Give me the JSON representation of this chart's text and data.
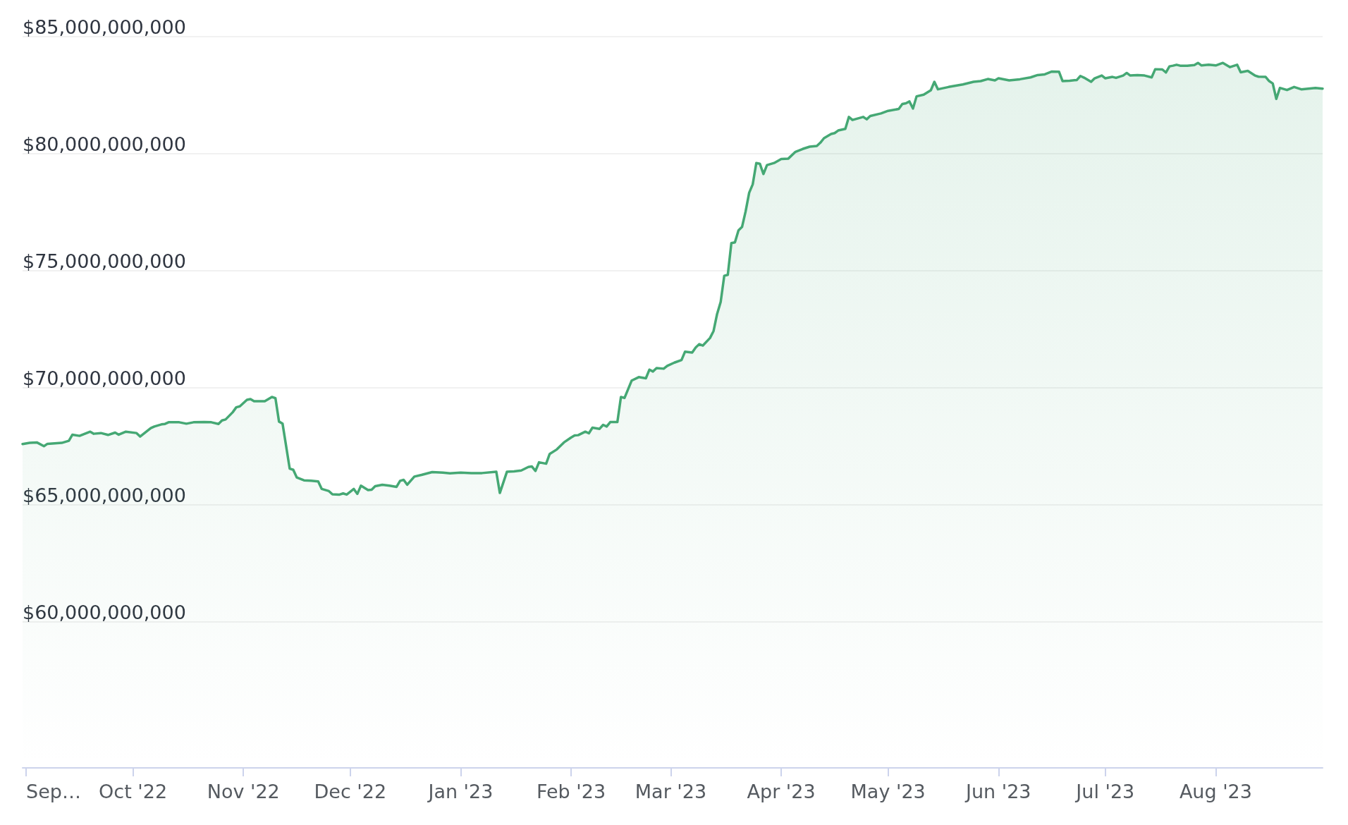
{
  "chart_data": {
    "type": "area",
    "color": "#45a874",
    "marker": "none",
    "line_style": "solid",
    "grid": "y",
    "xlim": [
      "2022-08-31",
      "2023-08-31"
    ],
    "xticks": [
      {
        "value": "2022-09-01",
        "label": "Sep…"
      },
      {
        "value": "2022-10-01",
        "label": "Oct '22"
      },
      {
        "value": "2022-11-01",
        "label": "Nov '22"
      },
      {
        "value": "2022-12-01",
        "label": "Dec '22"
      },
      {
        "value": "2023-01-01",
        "label": "Jan '23"
      },
      {
        "value": "2023-02-01",
        "label": "Feb '23"
      },
      {
        "value": "2023-03-01",
        "label": "Mar '23"
      },
      {
        "value": "2023-04-01",
        "label": "Apr '23"
      },
      {
        "value": "2023-05-01",
        "label": "May '23"
      },
      {
        "value": "2023-06-01",
        "label": "Jun '23"
      },
      {
        "value": "2023-07-01",
        "label": "Jul '23"
      },
      {
        "value": "2023-08-01",
        "label": "Aug '23"
      }
    ],
    "ylim": [
      53750000000,
      85000000000
    ],
    "yticks": [
      {
        "value": 60000000000,
        "label": "$60,000,000,000"
      },
      {
        "value": 65000000000,
        "label": "$65,000,000,000"
      },
      {
        "value": 70000000000,
        "label": "$70,000,000,000"
      },
      {
        "value": 75000000000,
        "label": "$75,000,000,000"
      },
      {
        "value": 80000000000,
        "label": "$80,000,000,000"
      },
      {
        "value": 85000000000,
        "label": "$85,000,000,000"
      }
    ],
    "x": [
      "2022-08-31",
      "2022-09-02",
      "2022-09-04",
      "2022-09-06",
      "2022-09-07",
      "2022-09-11",
      "2022-09-13",
      "2022-09-14",
      "2022-09-16",
      "2022-09-18",
      "2022-09-19",
      "2022-09-20",
      "2022-09-22",
      "2022-09-24",
      "2022-09-26",
      "2022-09-27",
      "2022-09-29",
      "2022-10-02",
      "2022-10-03",
      "2022-10-06",
      "2022-10-07",
      "2022-10-09",
      "2022-10-10",
      "2022-10-11",
      "2022-10-14",
      "2022-10-16",
      "2022-10-18",
      "2022-10-21",
      "2022-10-23",
      "2022-10-25",
      "2022-10-26",
      "2022-10-27",
      "2022-10-29",
      "2022-10-30",
      "2022-10-31",
      "2022-11-02",
      "2022-11-03",
      "2022-11-04",
      "2022-11-07",
      "2022-11-09",
      "2022-11-10",
      "2022-11-11",
      "2022-11-12",
      "2022-11-14",
      "2022-11-15",
      "2022-11-16",
      "2022-11-18",
      "2022-11-20",
      "2022-11-22",
      "2022-11-23",
      "2022-11-25",
      "2022-11-26",
      "2022-11-28",
      "2022-11-29",
      "2022-11-30",
      "2022-12-02",
      "2022-12-03",
      "2022-12-04",
      "2022-12-06",
      "2022-12-07",
      "2022-12-08",
      "2022-12-10",
      "2022-12-12",
      "2022-12-14",
      "2022-12-15",
      "2022-12-16",
      "2022-12-17",
      "2022-12-19",
      "2022-12-21",
      "2022-12-24",
      "2022-12-27",
      "2022-12-29",
      "2023-01-01",
      "2023-01-04",
      "2023-01-07",
      "2023-01-11",
      "2023-01-12",
      "2023-01-14",
      "2023-01-16",
      "2023-01-18",
      "2023-01-20",
      "2023-01-21",
      "2023-01-22",
      "2023-01-23",
      "2023-01-25",
      "2023-01-26",
      "2023-01-28",
      "2023-01-30",
      "2023-02-01",
      "2023-02-02",
      "2023-02-03",
      "2023-02-05",
      "2023-02-06",
      "2023-02-07",
      "2023-02-09",
      "2023-02-10",
      "2023-02-11",
      "2023-02-12",
      "2023-02-14",
      "2023-02-15",
      "2023-02-16",
      "2023-02-18",
      "2023-02-20",
      "2023-02-22",
      "2023-02-23",
      "2023-02-24",
      "2023-02-25",
      "2023-02-27",
      "2023-02-28",
      "2023-03-02",
      "2023-03-04",
      "2023-03-05",
      "2023-03-07",
      "2023-03-08",
      "2023-03-09",
      "2023-03-10",
      "2023-03-12",
      "2023-03-13",
      "2023-03-14",
      "2023-03-15",
      "2023-03-16",
      "2023-03-17",
      "2023-03-18",
      "2023-03-19",
      "2023-03-20",
      "2023-03-21",
      "2023-03-22",
      "2023-03-23",
      "2023-03-24",
      "2023-03-25",
      "2023-03-26",
      "2023-03-27",
      "2023-03-28",
      "2023-03-30",
      "2023-04-01",
      "2023-04-03",
      "2023-04-05",
      "2023-04-07",
      "2023-04-09",
      "2023-04-11",
      "2023-04-12",
      "2023-04-13",
      "2023-04-15",
      "2023-04-16",
      "2023-04-17",
      "2023-04-19",
      "2023-04-20",
      "2023-04-21",
      "2023-04-24",
      "2023-04-25",
      "2023-04-26",
      "2023-04-29",
      "2023-05-01",
      "2023-05-04",
      "2023-05-05",
      "2023-05-06",
      "2023-05-07",
      "2023-05-08",
      "2023-05-09",
      "2023-05-11",
      "2023-05-13",
      "2023-05-14",
      "2023-05-15",
      "2023-05-18",
      "2023-05-22",
      "2023-05-25",
      "2023-05-27",
      "2023-05-29",
      "2023-05-31",
      "2023-06-01",
      "2023-06-04",
      "2023-06-07",
      "2023-06-10",
      "2023-06-12",
      "2023-06-14",
      "2023-06-16",
      "2023-06-18",
      "2023-06-19",
      "2023-06-21",
      "2023-06-23",
      "2023-06-24",
      "2023-06-25",
      "2023-06-27",
      "2023-06-28",
      "2023-06-30",
      "2023-07-01",
      "2023-07-03",
      "2023-07-04",
      "2023-07-06",
      "2023-07-07",
      "2023-07-08",
      "2023-07-10",
      "2023-07-12",
      "2023-07-14",
      "2023-07-15",
      "2023-07-17",
      "2023-07-18",
      "2023-07-19",
      "2023-07-20",
      "2023-07-21",
      "2023-07-22",
      "2023-07-24",
      "2023-07-26",
      "2023-07-27",
      "2023-07-28",
      "2023-07-30",
      "2023-08-01",
      "2023-08-03",
      "2023-08-05",
      "2023-08-07",
      "2023-08-08",
      "2023-08-10",
      "2023-08-12",
      "2023-08-13",
      "2023-08-15",
      "2023-08-16",
      "2023-08-17",
      "2023-08-18",
      "2023-08-19",
      "2023-08-21",
      "2023-08-23",
      "2023-08-25",
      "2023-08-27",
      "2023-08-29",
      "2023-08-31"
    ],
    "values": [
      67590000000,
      67640000000,
      67660000000,
      67500000000,
      67600000000,
      67640000000,
      67730000000,
      67990000000,
      67940000000,
      68060000000,
      68120000000,
      68030000000,
      68060000000,
      67980000000,
      68080000000,
      67990000000,
      68120000000,
      68060000000,
      67910000000,
      68270000000,
      68340000000,
      68430000000,
      68450000000,
      68520000000,
      68520000000,
      68460000000,
      68520000000,
      68530000000,
      68520000000,
      68450000000,
      68600000000,
      68640000000,
      68950000000,
      69160000000,
      69200000000,
      69480000000,
      69510000000,
      69420000000,
      69420000000,
      69600000000,
      69550000000,
      68550000000,
      68460000000,
      66540000000,
      66490000000,
      66160000000,
      66040000000,
      66020000000,
      65990000000,
      65670000000,
      65580000000,
      65440000000,
      65430000000,
      65480000000,
      65430000000,
      65670000000,
      65460000000,
      65810000000,
      65620000000,
      65640000000,
      65790000000,
      65850000000,
      65810000000,
      65760000000,
      66020000000,
      66060000000,
      65850000000,
      66200000000,
      66270000000,
      66390000000,
      66370000000,
      66340000000,
      66370000000,
      66350000000,
      66350000000,
      66410000000,
      65500000000,
      66410000000,
      66420000000,
      66460000000,
      66610000000,
      66630000000,
      66440000000,
      66810000000,
      66750000000,
      67170000000,
      67360000000,
      67660000000,
      67870000000,
      67960000000,
      67970000000,
      68120000000,
      68050000000,
      68290000000,
      68240000000,
      68410000000,
      68340000000,
      68530000000,
      68530000000,
      69600000000,
      69560000000,
      70300000000,
      70450000000,
      70400000000,
      70770000000,
      70690000000,
      70840000000,
      70810000000,
      70930000000,
      71070000000,
      71180000000,
      71540000000,
      71500000000,
      71720000000,
      71860000000,
      71800000000,
      72120000000,
      72420000000,
      73150000000,
      73660000000,
      74780000000,
      74820000000,
      76180000000,
      76210000000,
      76720000000,
      76870000000,
      77530000000,
      78330000000,
      78690000000,
      79600000000,
      79570000000,
      79130000000,
      79510000000,
      79600000000,
      79770000000,
      79790000000,
      80080000000,
      80200000000,
      80300000000,
      80330000000,
      80470000000,
      80660000000,
      80840000000,
      80880000000,
      80990000000,
      81060000000,
      81570000000,
      81440000000,
      81570000000,
      81470000000,
      81610000000,
      81720000000,
      81830000000,
      81910000000,
      82120000000,
      82150000000,
      82230000000,
      81930000000,
      82450000000,
      82520000000,
      82710000000,
      83070000000,
      82750000000,
      82850000000,
      82960000000,
      83070000000,
      83100000000,
      83190000000,
      83130000000,
      83220000000,
      83130000000,
      83180000000,
      83260000000,
      83360000000,
      83390000000,
      83510000000,
      83500000000,
      83100000000,
      83120000000,
      83150000000,
      83320000000,
      83250000000,
      83070000000,
      83220000000,
      83340000000,
      83220000000,
      83280000000,
      83240000000,
      83340000000,
      83450000000,
      83340000000,
      83360000000,
      83340000000,
      83260000000,
      83610000000,
      83600000000,
      83470000000,
      83730000000,
      83760000000,
      83800000000,
      83760000000,
      83760000000,
      83790000000,
      83880000000,
      83770000000,
      83800000000,
      83770000000,
      83880000000,
      83700000000,
      83800000000,
      83480000000,
      83540000000,
      83340000000,
      83290000000,
      83280000000,
      83100000000,
      83000000000,
      82340000000,
      82810000000,
      82720000000,
      82850000000,
      82750000000,
      82780000000,
      82810000000,
      82780000000
    ]
  }
}
